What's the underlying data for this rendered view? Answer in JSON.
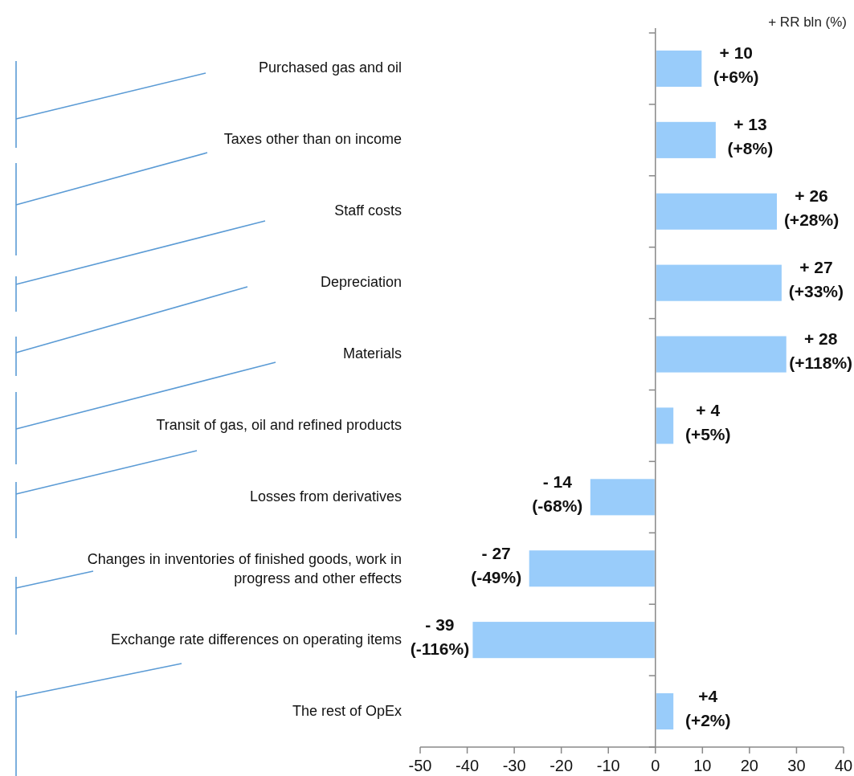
{
  "chart_data": {
    "type": "bar",
    "orientation": "horizontal",
    "xlabel": "+ RR bln (%)",
    "categories": [
      "Purchased gas and oil",
      "Taxes other than on income",
      "Staff costs",
      "Depreciation",
      "Materials",
      "Transit of gas, oil and refined products",
      "Losses from derivatives",
      "Changes in inventories of finished goods, work in progress and other effects",
      "Exchange rate differences on operating items",
      "The rest of OpEx"
    ],
    "values": [
      10,
      13,
      26,
      27,
      28,
      4,
      -14,
      -27,
      -39,
      4
    ],
    "value_labels": [
      "+ 10\n(+6%)",
      "+ 13\n(+8%)",
      "+ 26\n(+28%)",
      "+ 27\n(+33%)",
      "+ 28\n(+118%)",
      "+ 4\n(+5%)",
      "- 14\n(-68%)",
      "- 27\n(-49%)",
      "- 39\n(-116%)",
      "+4\n(+2%)"
    ],
    "color": "#99ccfa",
    "xlim": [
      -50,
      40
    ],
    "xticks": [
      -50,
      -40,
      -30,
      -20,
      -10,
      0,
      10,
      20,
      30,
      40
    ]
  }
}
